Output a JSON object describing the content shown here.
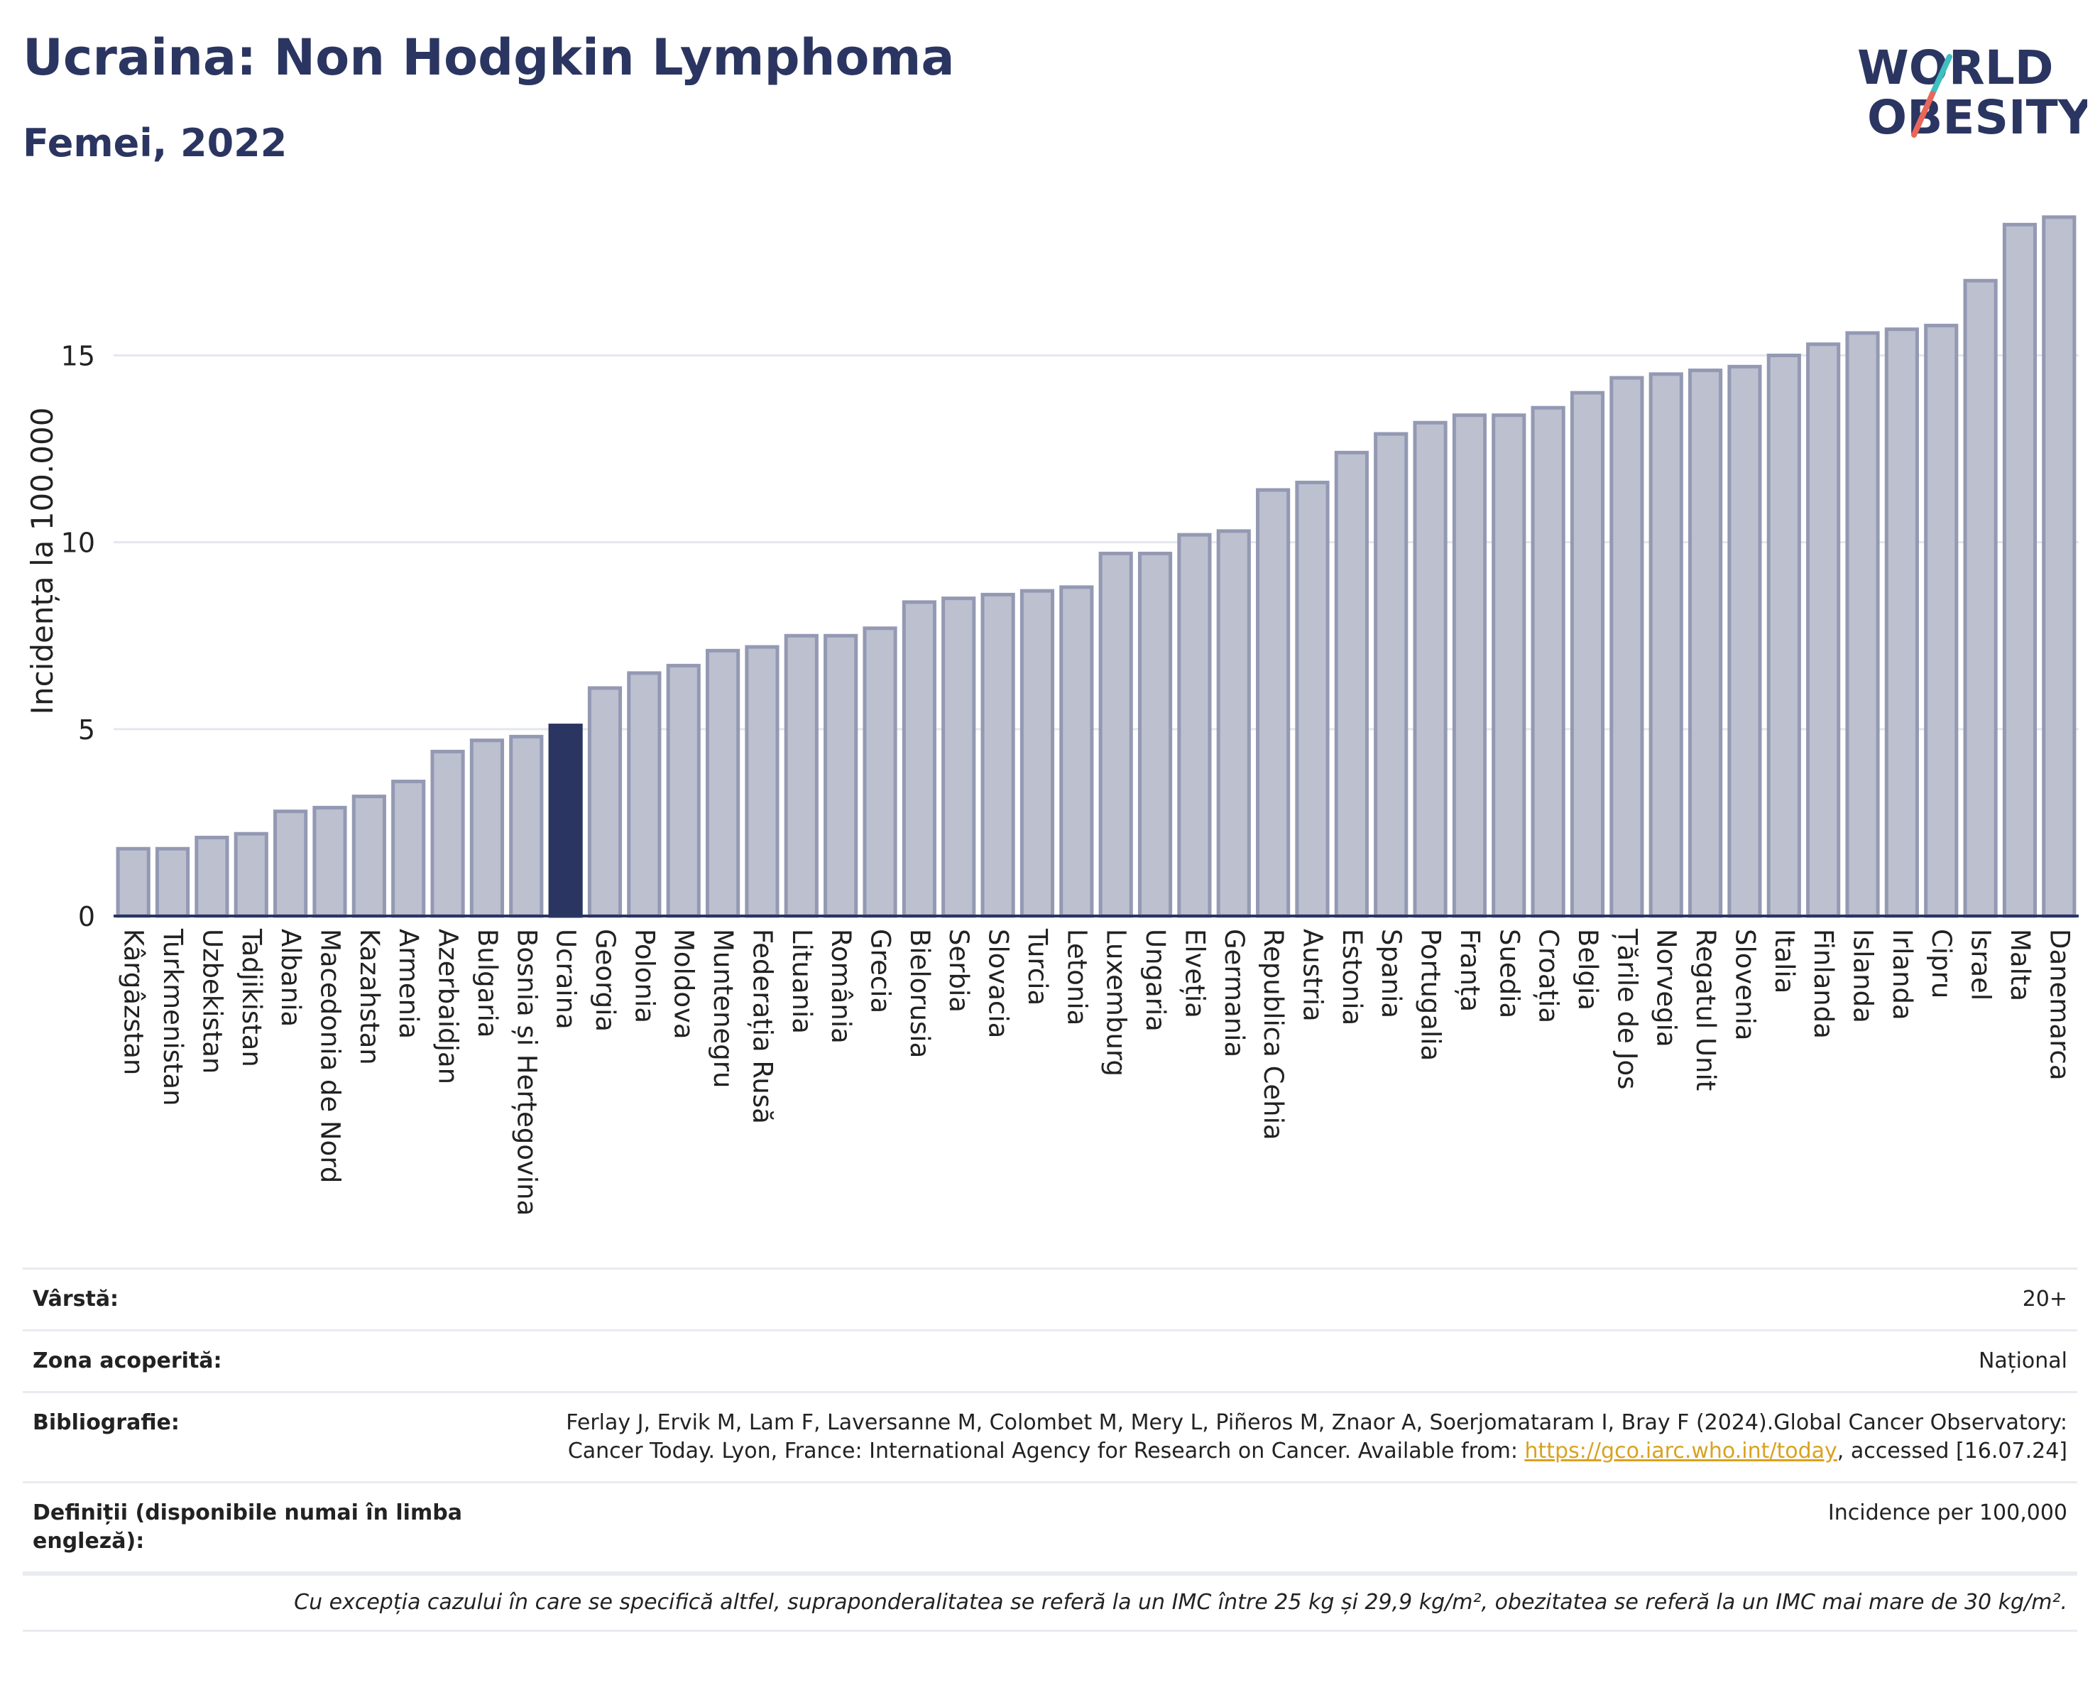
{
  "header": {
    "title": "Ucraina: Non Hodgkin Lymphoma",
    "subtitle": "Femei, 2022",
    "logo_line1": "WORLD",
    "logo_line2": "OBESITY"
  },
  "colors": {
    "bar": "#bcc0cf",
    "bar_border": "#9499b3",
    "highlight": "#2b3561",
    "grid": "#e4e7ee",
    "text": "#2b3561",
    "link": "#d9a21f",
    "logo_teal": "#3fbfbf",
    "logo_coral": "#e8675a"
  },
  "chart_data": {
    "type": "bar",
    "ylabel": "Incidența la 100.000",
    "ylim": [
      0,
      19
    ],
    "yticks": [
      0,
      5,
      10,
      15
    ],
    "grid": true,
    "highlight_category": "Ucraina",
    "categories": [
      "Kârgâzstan",
      "Turkmenistan",
      "Uzbekistan",
      "Tadjikistan",
      "Albania",
      "Macedonia de Nord",
      "Kazahstan",
      "Armenia",
      "Azerbaidjan",
      "Bulgaria",
      "Bosnia și Herțegovina",
      "Ucraina",
      "Georgia",
      "Polonia",
      "Moldova",
      "Muntenegru",
      "Federația Rusă",
      "Lituania",
      "România",
      "Grecia",
      "Bielorusia",
      "Serbia",
      "Slovacia",
      "Turcia",
      "Letonia",
      "Luxemburg",
      "Ungaria",
      "Elveția",
      "Germania",
      "Republica Cehia",
      "Austria",
      "Estonia",
      "Spania",
      "Portugalia",
      "Franța",
      "Suedia",
      "Croația",
      "Belgia",
      "Țările de Jos",
      "Norvegia",
      "Regatul Unit",
      "Slovenia",
      "Italia",
      "Finlanda",
      "Islanda",
      "Irlanda",
      "Cipru",
      "Israel",
      "Malta",
      "Danemarca"
    ],
    "values": [
      1.8,
      1.8,
      2.1,
      2.2,
      2.8,
      2.9,
      3.2,
      3.6,
      4.4,
      4.7,
      4.8,
      5.1,
      6.1,
      6.5,
      6.7,
      7.1,
      7.2,
      7.5,
      7.5,
      7.7,
      8.4,
      8.5,
      8.6,
      8.7,
      8.8,
      9.7,
      9.7,
      10.2,
      10.3,
      11.4,
      11.6,
      12.4,
      12.9,
      13.2,
      13.4,
      13.4,
      13.6,
      14.0,
      14.4,
      14.5,
      14.6,
      14.7,
      15.0,
      15.3,
      15.6,
      15.7,
      15.8,
      17.0,
      18.5,
      18.7
    ]
  },
  "meta": {
    "age_label": "Vârstă:",
    "age_value": "20+",
    "coverage_label": "Zona acoperită:",
    "coverage_value": "Național",
    "biblio_label": "Bibliografie:",
    "biblio_text": "Ferlay J, Ervik M, Lam F, Laversanne M, Colombet M, Mery L, Piñeros M, Znaor A, Soerjomataram I, Bray F (2024).Global Cancer Observatory: Cancer Today. Lyon, France: International Agency for Research on Cancer. Available from: ",
    "biblio_link": "https://gco.iarc.who.int/today",
    "biblio_suffix": ", accessed [16.07.24]",
    "definitions_label": "Definiții (disponibile numai în limba engleză):",
    "definitions_value": "Incidence per 100,000",
    "note": "Cu excepția cazului în care se specifică altfel, supraponderalitatea se referă la un IMC între 25 kg și 29,9 kg/m², obezitatea se referă la un IMC mai mare de 30 kg/m²."
  }
}
